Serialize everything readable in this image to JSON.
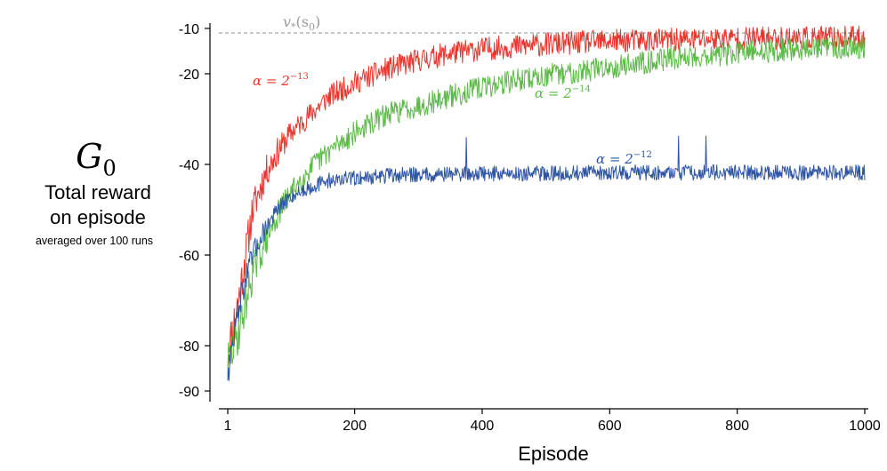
{
  "chart_data": {
    "type": "line",
    "title": "",
    "xlabel": "Episode",
    "ylabel_symbol": "G",
    "ylabel_symbol_sub": "0",
    "ylabel_lines": [
      "Total reward",
      "on episode",
      "averaged over 100 runs"
    ],
    "xlim": [
      1,
      1000
    ],
    "ylim": [
      -93,
      -8
    ],
    "x_ticks": [
      1,
      200,
      400,
      600,
      800,
      1000
    ],
    "x_tick_labels": [
      "1",
      "200",
      "400",
      "600",
      "800",
      "1000"
    ],
    "y_ticks": [
      -10,
      -20,
      -40,
      -60,
      -80,
      -90
    ],
    "y_tick_labels": [
      "-10",
      "-20",
      "-40",
      "-60",
      "-80",
      "-90"
    ],
    "reference_line": {
      "value": -11,
      "label": "v*(s0)",
      "label_main": "v",
      "label_sub": "*",
      "label_arg": "(s",
      "label_arg_sub": "0",
      "label_close": ")",
      "color": "#9a9a9a"
    },
    "series": [
      {
        "name": "α = 2^-13",
        "label_main": "α = 2",
        "label_exp": "−13",
        "color": "#e8352d",
        "x": [
          1,
          20,
          40,
          60,
          80,
          100,
          130,
          160,
          200,
          250,
          300,
          350,
          400,
          450,
          500,
          600,
          700,
          800,
          900,
          1000
        ],
        "values": [
          -82,
          -68,
          -50,
          -42,
          -37,
          -33,
          -29,
          -25,
          -22,
          -19,
          -17,
          -15.5,
          -14.5,
          -14,
          -13.5,
          -12.8,
          -12.5,
          -12.2,
          -12.1,
          -12
        ]
      },
      {
        "name": "α = 2^-14",
        "label_main": "α = 2",
        "label_exp": "−14",
        "color": "#5dba48",
        "x": [
          1,
          20,
          40,
          60,
          80,
          100,
          130,
          160,
          200,
          250,
          300,
          350,
          400,
          450,
          500,
          600,
          700,
          800,
          900,
          1000
        ],
        "values": [
          -84,
          -76,
          -64,
          -57,
          -51,
          -46,
          -41,
          -37,
          -33,
          -29,
          -27,
          -25,
          -23,
          -21.5,
          -20.5,
          -18.5,
          -16.5,
          -15.5,
          -14.5,
          -14
        ]
      },
      {
        "name": "α = 2^-12",
        "label_main": "α = 2",
        "label_exp": "−12",
        "color": "#2e55a4",
        "x": [
          1,
          20,
          40,
          60,
          80,
          100,
          130,
          160,
          200,
          250,
          300,
          400,
          500,
          600,
          700,
          800,
          900,
          1000
        ],
        "values": [
          -86,
          -70,
          -60,
          -54,
          -50,
          -47,
          -45,
          -43.5,
          -43,
          -42.5,
          -42.2,
          -42,
          -42,
          -41.8,
          -41.8,
          -41.7,
          -41.8,
          -41.8
        ]
      }
    ]
  }
}
